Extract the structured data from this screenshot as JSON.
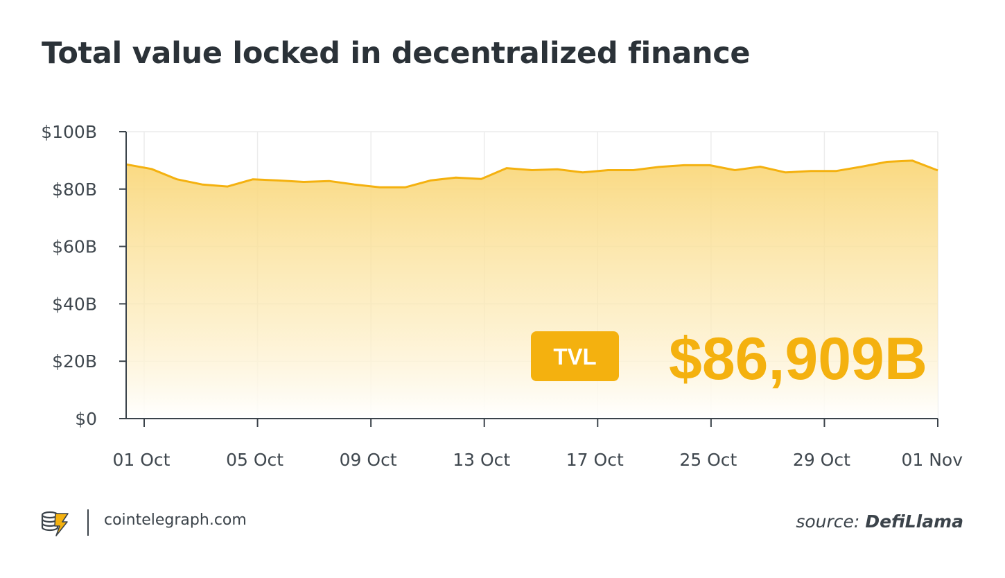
{
  "title": "Total value locked in decentralized finance",
  "footer": {
    "site": "cointelegraph.com",
    "source_prefix": "source:",
    "source_name": "DefiLlama"
  },
  "colors": {
    "line": "#f4b10f",
    "fill_top": "#f9d77a",
    "badge": "#f4b10f",
    "text": "#2b3238",
    "grid": "#ececec"
  },
  "chart_data": {
    "type": "area",
    "title": "Total value locked in decentralized finance",
    "xlabel": "",
    "ylabel": "",
    "y_ticks": [
      "$0",
      "$20B",
      "$40B",
      "$60B",
      "$80B",
      "$100B"
    ],
    "y_tick_values": [
      0,
      20,
      40,
      60,
      80,
      100
    ],
    "ylim": [
      0,
      100
    ],
    "x_tick_labels": [
      "01 Oct",
      "05 Oct",
      "09 Oct",
      "13 Oct",
      "17 Oct",
      "25 Oct",
      "29 Oct",
      "01 Nov"
    ],
    "grid": true,
    "annotation": {
      "badge": "TVL",
      "value": "$86,909B"
    },
    "series": [
      {
        "values": [
          88.6,
          87.0,
          83.4,
          81.6,
          80.9,
          83.4,
          83.0,
          82.5,
          82.8,
          81.6,
          80.6,
          80.6,
          83.0,
          84.0,
          83.5,
          87.3,
          86.6,
          86.9,
          85.8,
          86.6,
          86.6,
          87.7,
          88.3,
          88.3,
          86.6,
          87.8,
          85.8,
          86.3,
          86.3,
          87.8,
          89.5,
          89.9,
          86.5
        ]
      }
    ]
  }
}
